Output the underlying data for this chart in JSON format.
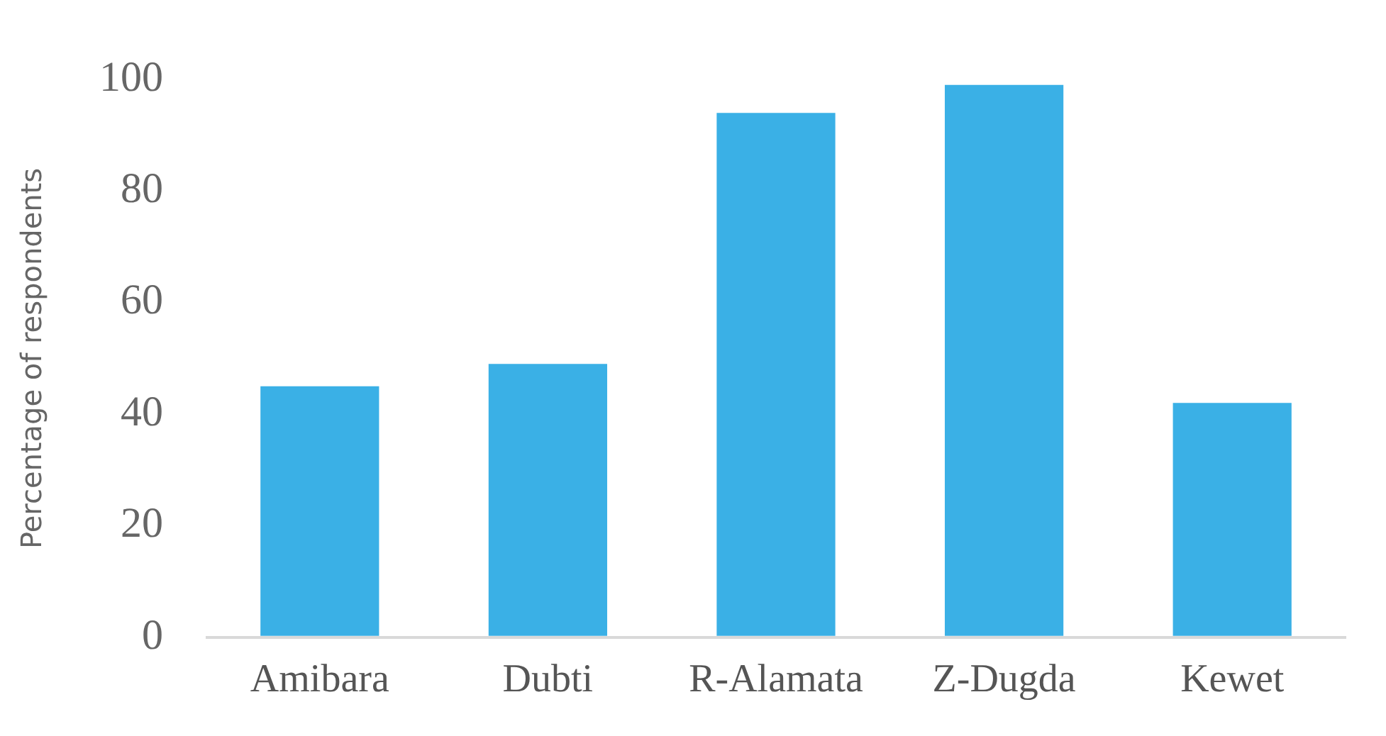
{
  "chart_data": {
    "type": "bar",
    "ylabel": "Percentage of respondents",
    "categories": [
      "Amibara",
      "Dubti",
      "R-Alamata",
      "Z-Dugda",
      "Kewet"
    ],
    "values": [
      45,
      49,
      94,
      99,
      42
    ],
    "color": "#3ab0e6",
    "ylim": [
      0,
      100
    ],
    "yticks": [
      0,
      20,
      40,
      60,
      80,
      100
    ],
    "grid": false,
    "legend": false
  }
}
